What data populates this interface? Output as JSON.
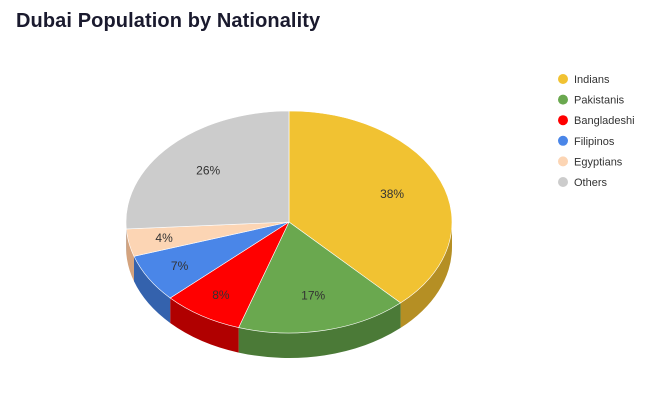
{
  "title": "Dubai Population by Nationality",
  "chart_data": {
    "type": "pie",
    "title": "Dubai Population by Nationality",
    "legend_position": "right",
    "slices": [
      {
        "name": "Indians",
        "value": 38,
        "label": "38%",
        "color": "#f1c232",
        "side_color": "#b58f24"
      },
      {
        "name": "Pakistanis",
        "value": 17,
        "label": "17%",
        "color": "#6aa84f",
        "side_color": "#4b7a37"
      },
      {
        "name": "Bangladeshi",
        "value": 8,
        "label": "8%",
        "color": "#ff0000",
        "side_color": "#b00000"
      },
      {
        "name": "Filipinos",
        "value": 7,
        "label": "7%",
        "color": "#4a86e8",
        "side_color": "#3462ad"
      },
      {
        "name": "Egyptians",
        "value": 4,
        "label": "4%",
        "color": "#fcd5b4",
        "side_color": "#d4a37e"
      },
      {
        "name": "Others",
        "value": 26,
        "label": "26%",
        "color": "#cccccc",
        "side_color": "#9a9a9a"
      }
    ]
  }
}
